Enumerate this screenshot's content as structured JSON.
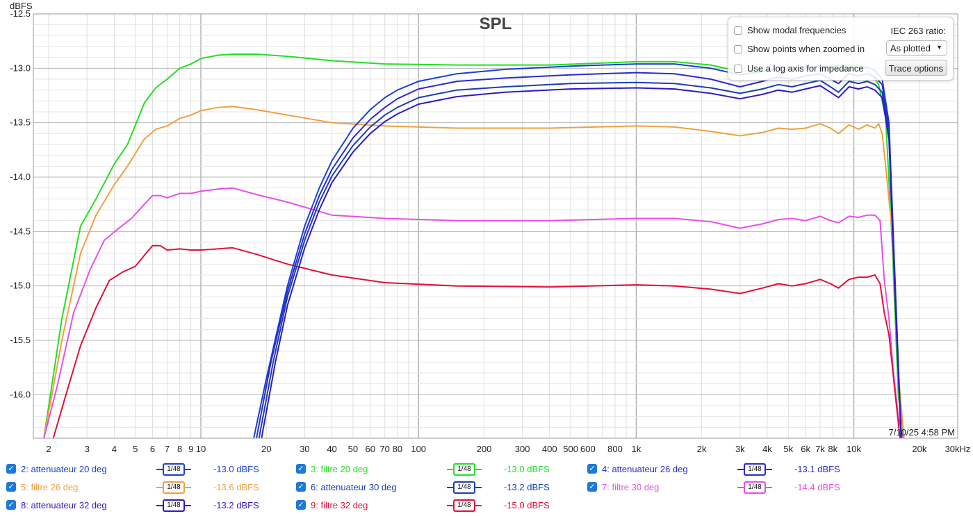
{
  "title": "SPL",
  "timestamp": "7/10/25 4:58 PM",
  "options": {
    "show_modal": "Show modal frequencies",
    "show_points": "Show points when zoomed in",
    "log_axis": "Use a log axis for impedance",
    "iec_label": "IEC 263 ratio:",
    "iec_value": "As plotted",
    "trace_options": "Trace options"
  },
  "legend": [
    {
      "name": "2: attenuateur 20 deg",
      "value": "-13.0 dBFS",
      "color": "#1a3fd6",
      "smoothing": "1/48"
    },
    {
      "name": "3: filtre 20 deg",
      "value": "-13.0 dBFS",
      "color": "#22e022",
      "smoothing": "1/48"
    },
    {
      "name": "4: attenuateur 26 deg",
      "value": "-13.1 dBFS",
      "color": "#2a2ad0",
      "smoothing": "1/48"
    },
    {
      "name": "5: filtre 26 deg",
      "value": "-13.6 dBFS",
      "color": "#f0a040",
      "smoothing": "1/48"
    },
    {
      "name": "6: attenuateur 30 deg",
      "value": "-13.2 dBFS",
      "color": "#1840b0",
      "smoothing": "1/48"
    },
    {
      "name": "7: filtre 30 deg",
      "value": "-14.4 dBFS",
      "color": "#e84ee8",
      "smoothing": "1/48"
    },
    {
      "name": "8: attenuateur 32 deg",
      "value": "-13.2 dBFS",
      "color": "#3018c8",
      "smoothing": "1/48"
    },
    {
      "name": "9: filtre 32 deg",
      "value": "-15.0 dBFS",
      "color": "#e0103a",
      "smoothing": "1/48"
    }
  ],
  "chart_data": {
    "type": "line",
    "title": "SPL",
    "ylabel": "dBFS",
    "xlabel": "",
    "x_scale": "log",
    "xlim": [
      1.7,
      30000
    ],
    "ylim": [
      -16.4,
      -12.5
    ],
    "grid": true,
    "yticks": [
      -12.5,
      -13.0,
      -13.5,
      -14.0,
      -14.5,
      -15.0,
      -15.5,
      -16.0
    ],
    "ytick_labels": [
      "-12.5",
      "-13.0",
      "-13.5",
      "-14.0",
      "-14.5",
      "-15.0",
      "-15.5",
      "-16.0"
    ],
    "xtick_labels": [
      {
        "x": 2,
        "label": "2"
      },
      {
        "x": 3,
        "label": "3"
      },
      {
        "x": 4,
        "label": "4"
      },
      {
        "x": 5,
        "label": "5"
      },
      {
        "x": 6,
        "label": "6"
      },
      {
        "x": 7,
        "label": "7"
      },
      {
        "x": 8,
        "label": "8"
      },
      {
        "x": 9,
        "label": "9"
      },
      {
        "x": 10,
        "label": "10"
      },
      {
        "x": 20,
        "label": "20"
      },
      {
        "x": 30,
        "label": "30"
      },
      {
        "x": 40,
        "label": "40"
      },
      {
        "x": 50,
        "label": "50"
      },
      {
        "x": 60,
        "label": "60"
      },
      {
        "x": 70,
        "label": "70"
      },
      {
        "x": 80,
        "label": "80"
      },
      {
        "x": 100,
        "label": "100"
      },
      {
        "x": 200,
        "label": "200"
      },
      {
        "x": 300,
        "label": "300"
      },
      {
        "x": 400,
        "label": "400"
      },
      {
        "x": 500,
        "label": "500"
      },
      {
        "x": 600,
        "label": "600"
      },
      {
        "x": 800,
        "label": "800"
      },
      {
        "x": 1000,
        "label": "1k"
      },
      {
        "x": 2000,
        "label": "2k"
      },
      {
        "x": 3000,
        "label": "3k"
      },
      {
        "x": 4000,
        "label": "4k"
      },
      {
        "x": 5000,
        "label": "5k"
      },
      {
        "x": 6000,
        "label": "6k"
      },
      {
        "x": 7000,
        "label": "7k"
      },
      {
        "x": 8000,
        "label": "8k"
      },
      {
        "x": 10000,
        "label": "10k"
      },
      {
        "x": 20000,
        "label": "20k"
      },
      {
        "x": 30000,
        "label": "30kHz"
      }
    ],
    "series": [
      {
        "name": "3: filtre 20 deg",
        "color": "#22e022",
        "x": [
          1.9,
          2.3,
          2.8,
          3.3,
          4,
          4.6,
          5.5,
          6.2,
          7,
          8,
          9,
          10,
          12,
          14,
          18,
          25,
          40,
          70,
          150,
          400,
          1000,
          1500,
          2200,
          3000,
          3800,
          4500,
          5200,
          6000,
          7000,
          8000,
          9000,
          10000,
          11000,
          12000,
          13000,
          14000,
          15000,
          16000,
          17000
        ],
        "y": [
          -16.4,
          -15.3,
          -14.45,
          -14.2,
          -13.88,
          -13.7,
          -13.32,
          -13.18,
          -13.1,
          -13.0,
          -12.96,
          -12.91,
          -12.88,
          -12.87,
          -12.87,
          -12.89,
          -12.93,
          -12.96,
          -12.97,
          -12.97,
          -12.94,
          -12.94,
          -12.97,
          -13.03,
          -13.02,
          -13.0,
          -12.99,
          -12.99,
          -12.98,
          -12.98,
          -12.97,
          -12.97,
          -12.98,
          -13.05,
          -13.15,
          -13.45,
          -14.6,
          -16.0,
          -16.4
        ]
      },
      {
        "name": "5: filtre 26 deg",
        "color": "#f0a040",
        "x": [
          1.9,
          2.3,
          2.8,
          3.3,
          4,
          4.6,
          5.5,
          6.2,
          7,
          8,
          9,
          10,
          12,
          14,
          18,
          25,
          40,
          70,
          150,
          400,
          1000,
          1500,
          2200,
          3000,
          3800,
          4500,
          5200,
          6000,
          7000,
          7800,
          8500,
          9500,
          10500,
          11500,
          12500,
          13000,
          13500,
          14000,
          15000,
          16000,
          17000
        ],
        "y": [
          -16.4,
          -15.5,
          -14.7,
          -14.35,
          -14.07,
          -13.9,
          -13.65,
          -13.56,
          -13.53,
          -13.46,
          -13.43,
          -13.39,
          -13.36,
          -13.35,
          -13.38,
          -13.43,
          -13.5,
          -13.53,
          -13.55,
          -13.55,
          -13.53,
          -13.54,
          -13.58,
          -13.62,
          -13.59,
          -13.55,
          -13.56,
          -13.55,
          -13.51,
          -13.55,
          -13.6,
          -13.52,
          -13.56,
          -13.52,
          -13.55,
          -13.51,
          -13.6,
          -13.9,
          -14.5,
          -15.8,
          -16.4
        ]
      },
      {
        "name": "7: filtre 30 deg",
        "color": "#e84ee8",
        "x": [
          1.9,
          2.2,
          2.6,
          3.1,
          3.6,
          4.2,
          4.8,
          5.5,
          6,
          6.5,
          7,
          8,
          9,
          10,
          12,
          14,
          18,
          25,
          40,
          70,
          150,
          400,
          1000,
          1500,
          2200,
          3000,
          3800,
          4500,
          5200,
          6000,
          7000,
          7800,
          8500,
          9500,
          10500,
          11500,
          12500,
          13200,
          13800,
          14500,
          15200,
          16000,
          16800
        ],
        "y": [
          -16.4,
          -15.9,
          -15.25,
          -14.85,
          -14.58,
          -14.47,
          -14.38,
          -14.25,
          -14.17,
          -14.17,
          -14.19,
          -14.15,
          -14.15,
          -14.13,
          -14.11,
          -14.1,
          -14.16,
          -14.23,
          -14.35,
          -14.38,
          -14.4,
          -14.4,
          -14.38,
          -14.38,
          -14.41,
          -14.47,
          -14.43,
          -14.39,
          -14.38,
          -14.4,
          -14.36,
          -14.4,
          -14.42,
          -14.36,
          -14.37,
          -14.35,
          -14.35,
          -14.4,
          -14.95,
          -15.3,
          -15.8,
          -16.2,
          -16.4
        ]
      },
      {
        "name": "9: filtre 32 deg",
        "color": "#e0103a",
        "x": [
          2.1,
          2.4,
          2.8,
          3.3,
          3.8,
          4.4,
          5,
          5.6,
          6,
          6.5,
          7,
          8,
          9,
          10,
          12,
          14,
          18,
          25,
          40,
          70,
          150,
          400,
          1000,
          1500,
          2200,
          3000,
          3800,
          4500,
          5200,
          6000,
          7000,
          7800,
          8500,
          9500,
          10500,
          11500,
          12500,
          13200,
          13800,
          14500,
          15500,
          16300
        ],
        "y": [
          -16.4,
          -16.0,
          -15.55,
          -15.2,
          -14.95,
          -14.87,
          -14.82,
          -14.7,
          -14.63,
          -14.63,
          -14.67,
          -14.66,
          -14.67,
          -14.67,
          -14.66,
          -14.65,
          -14.71,
          -14.8,
          -14.9,
          -14.97,
          -15.0,
          -15.01,
          -14.99,
          -15.0,
          -15.03,
          -15.07,
          -15.02,
          -14.98,
          -15.0,
          -14.98,
          -14.94,
          -14.98,
          -15.02,
          -14.94,
          -14.92,
          -14.92,
          -14.9,
          -14.98,
          -15.25,
          -15.45,
          -16.0,
          -16.4
        ]
      },
      {
        "name": "2: attenuateur 20 deg",
        "color": "#1a3fd6",
        "x": [
          17.5,
          20,
          25,
          30,
          35,
          40,
          50,
          60,
          70,
          80,
          100,
          150,
          250,
          500,
          1000,
          1500,
          2200,
          3000,
          3800,
          4500,
          5200,
          6000,
          7000,
          7800,
          8500,
          9500,
          10500,
          11500,
          12500,
          13500,
          14500,
          15500,
          16500
        ],
        "y": [
          -16.4,
          -15.85,
          -15.0,
          -14.45,
          -14.1,
          -13.85,
          -13.55,
          -13.38,
          -13.27,
          -13.2,
          -13.12,
          -13.05,
          -13.01,
          -12.98,
          -12.96,
          -12.96,
          -13.0,
          -13.06,
          -13.03,
          -13.0,
          -13.01,
          -13.0,
          -12.98,
          -13.0,
          -13.02,
          -12.99,
          -13.0,
          -12.99,
          -13.02,
          -13.1,
          -13.5,
          -15.0,
          -16.4
        ]
      },
      {
        "name": "4: attenuateur 26 deg",
        "color": "#2a2ad0",
        "x": [
          18,
          21,
          25,
          30,
          35,
          40,
          50,
          60,
          70,
          80,
          100,
          150,
          250,
          500,
          1000,
          1500,
          2200,
          3000,
          3800,
          4500,
          5200,
          6000,
          7000,
          7800,
          8500,
          9500,
          10500,
          11500,
          12500,
          13500,
          14500,
          15500,
          16500
        ],
        "y": [
          -16.4,
          -15.7,
          -15.05,
          -14.52,
          -14.17,
          -13.93,
          -13.64,
          -13.47,
          -13.36,
          -13.28,
          -13.19,
          -13.12,
          -13.09,
          -13.06,
          -13.04,
          -13.05,
          -13.1,
          -13.17,
          -13.12,
          -13.08,
          -13.1,
          -13.07,
          -13.05,
          -13.1,
          -13.14,
          -13.05,
          -13.07,
          -13.05,
          -13.08,
          -13.15,
          -13.55,
          -15.1,
          -16.4
        ]
      },
      {
        "name": "6: attenuateur 30 deg",
        "color": "#1840b0",
        "x": [
          18.5,
          21.5,
          25,
          30,
          35,
          40,
          50,
          60,
          70,
          80,
          100,
          150,
          250,
          500,
          1000,
          1500,
          2200,
          3000,
          3800,
          4500,
          5200,
          6000,
          7000,
          7800,
          8500,
          9500,
          10500,
          11500,
          12500,
          13500,
          14500,
          15500,
          16500
        ],
        "y": [
          -16.4,
          -15.7,
          -15.1,
          -14.58,
          -14.23,
          -13.99,
          -13.71,
          -13.54,
          -13.43,
          -13.36,
          -13.27,
          -13.2,
          -13.17,
          -13.14,
          -13.13,
          -13.14,
          -13.18,
          -13.23,
          -13.19,
          -13.15,
          -13.17,
          -13.14,
          -13.11,
          -13.17,
          -13.22,
          -13.12,
          -13.14,
          -13.12,
          -13.15,
          -13.22,
          -13.6,
          -15.1,
          -16.4
        ]
      },
      {
        "name": "8: attenuateur 32 deg",
        "color": "#3018c8",
        "x": [
          19,
          22,
          25,
          30,
          35,
          40,
          50,
          60,
          70,
          80,
          100,
          150,
          250,
          500,
          1000,
          1500,
          2200,
          3000,
          3800,
          4500,
          5200,
          6000,
          7000,
          7800,
          8500,
          9500,
          10500,
          11500,
          12500,
          13500,
          14500,
          15500,
          16500
        ],
        "y": [
          -16.4,
          -15.7,
          -15.18,
          -14.65,
          -14.3,
          -14.05,
          -13.77,
          -13.6,
          -13.49,
          -13.42,
          -13.33,
          -13.26,
          -13.22,
          -13.19,
          -13.18,
          -13.19,
          -13.23,
          -13.28,
          -13.24,
          -13.2,
          -13.22,
          -13.19,
          -13.16,
          -13.22,
          -13.27,
          -13.17,
          -13.19,
          -13.17,
          -13.2,
          -13.27,
          -13.65,
          -15.15,
          -16.4
        ]
      }
    ]
  }
}
